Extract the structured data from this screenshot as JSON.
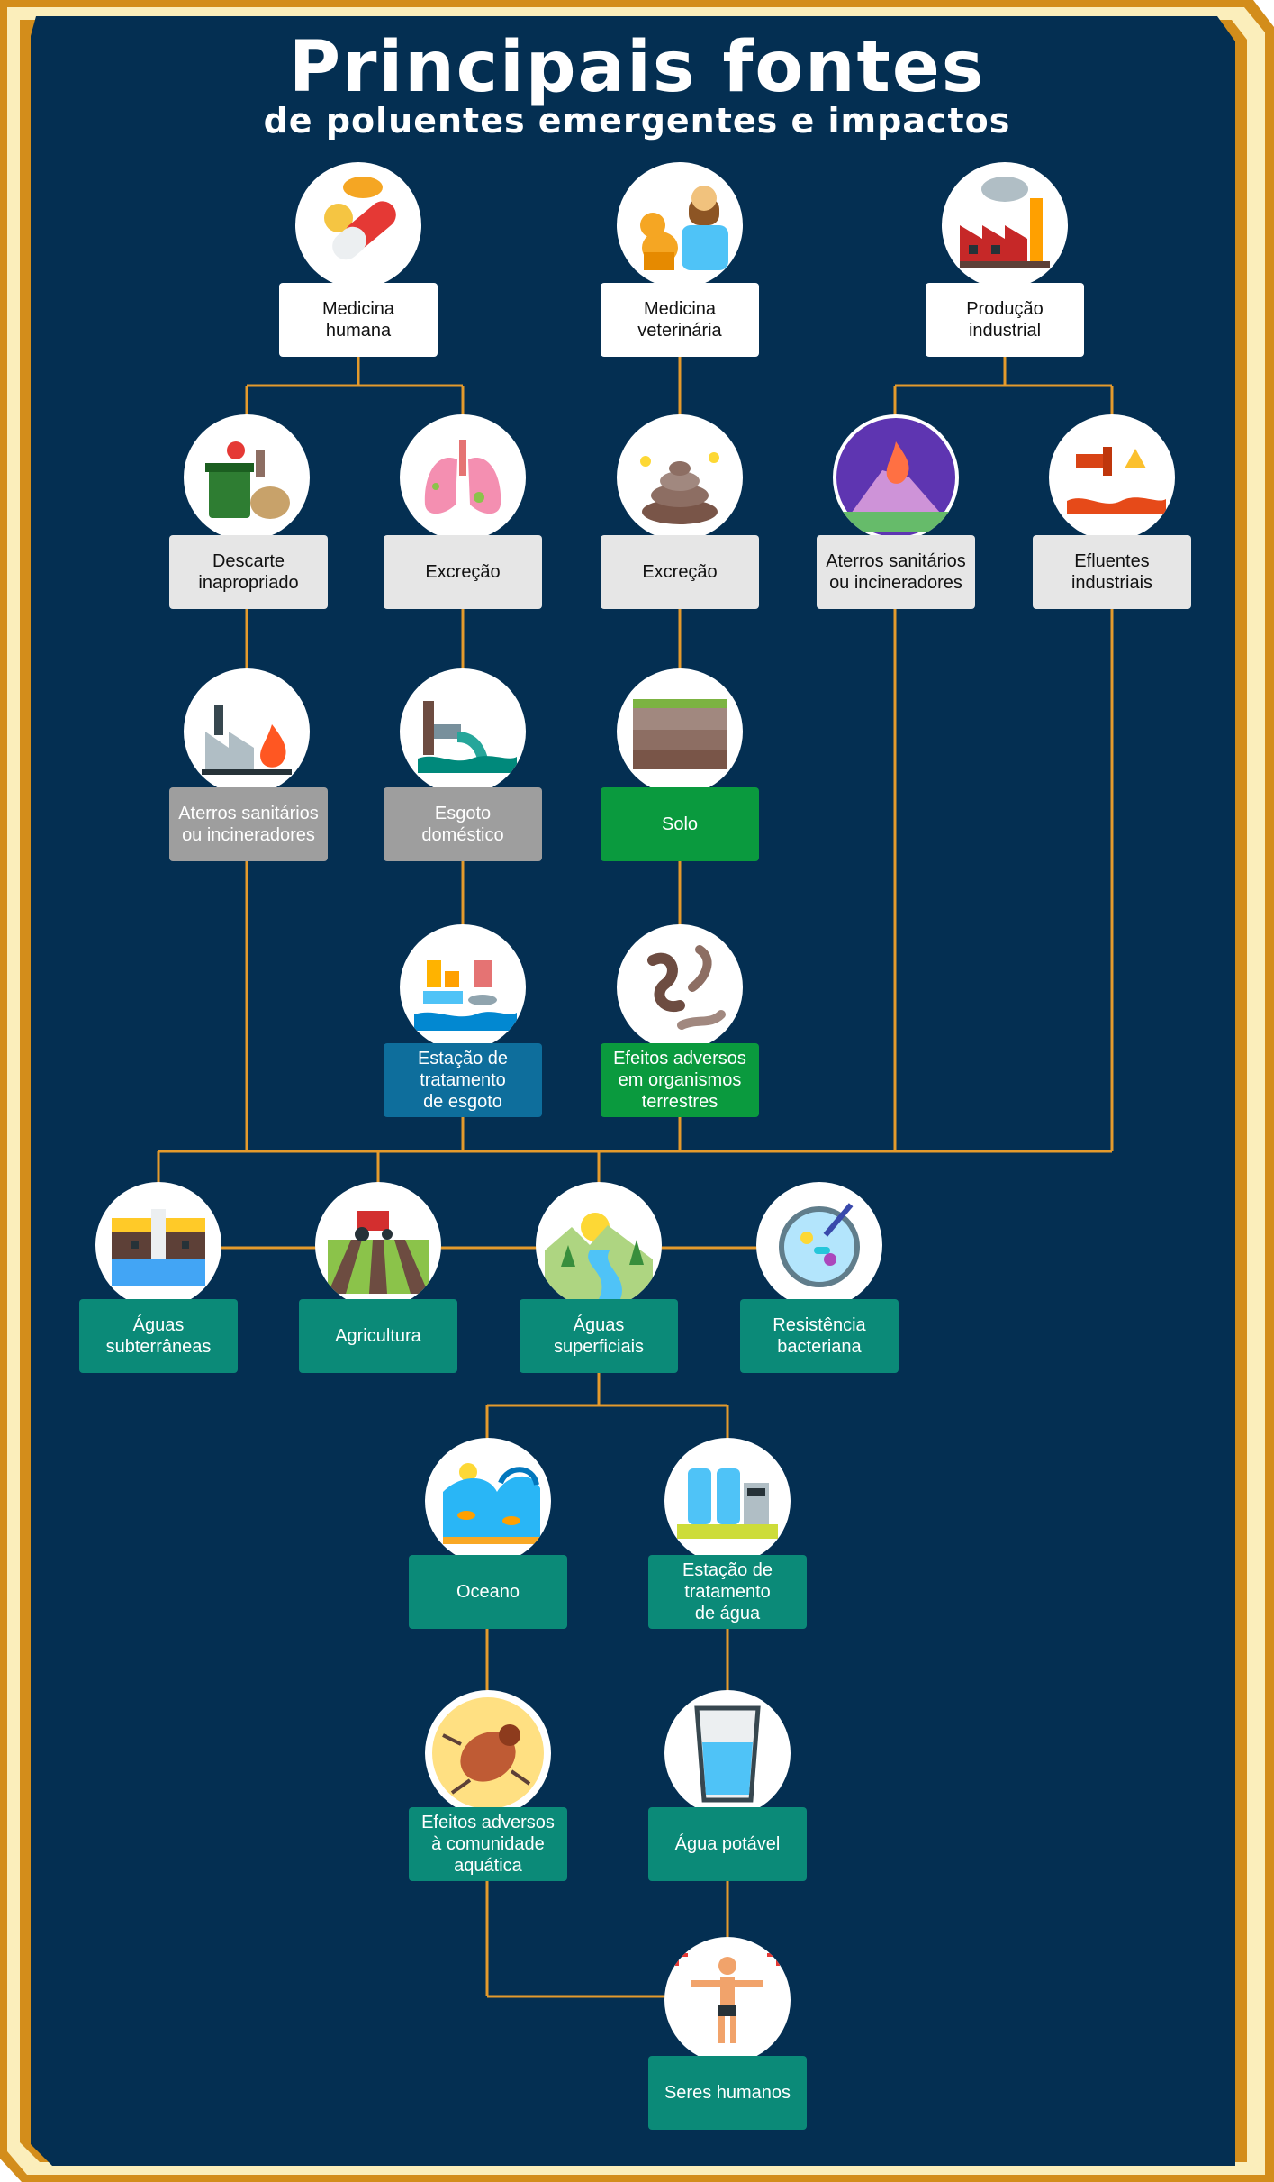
{
  "title": "Principais fontes",
  "subtitle": "de poluentes emergentes e impactos",
  "colors": {
    "background": "#042f52",
    "frame_outer": "#d38d1b",
    "frame_inner": "#fbeebb",
    "connector": "#e49a2c",
    "white_box": "#ffffff",
    "light_gray_box": "#e6e6e6",
    "dark_gray_box": "#9e9e9e",
    "green_box": "#0a9a3e",
    "blue_box": "#0e6e9c",
    "teal_box": "#0b8a78"
  },
  "nodes": {
    "medicina_humana": {
      "label": "Medicina\nhumana",
      "icon": "pill-capsule-icon"
    },
    "medicina_veterinaria": {
      "label": "Medicina\nveterinária",
      "icon": "veterinarian-dog-icon"
    },
    "producao_industrial": {
      "label": "Produção\nindustrial",
      "icon": "factory-icon"
    },
    "descarte": {
      "label": "Descarte\ninapropriado",
      "icon": "trash-bin-icon"
    },
    "excrecao_humana": {
      "label": "Excreção",
      "icon": "lungs-icon"
    },
    "excrecao_animal": {
      "label": "Excreção",
      "icon": "manure-icon"
    },
    "aterros_industriais": {
      "label": "Aterros sanitários\nou incineradores",
      "icon": "landfill-fire-icon"
    },
    "efluentes": {
      "label": "Efluentes\nindustriais",
      "icon": "effluent-pipe-icon"
    },
    "aterros_descarte": {
      "label": "Aterros sanitários\nou incineradores",
      "icon": "incinerator-factory-icon"
    },
    "esgoto": {
      "label": "Esgoto\ndoméstico",
      "icon": "sewage-pipe-icon"
    },
    "solo": {
      "label": "Solo",
      "icon": "soil-layers-icon"
    },
    "ete_esgoto": {
      "label": "Estação de\ntratamento\nde esgoto",
      "icon": "treatment-plant-icon"
    },
    "efeitos_terrestres": {
      "label": "Efeitos adversos\nem organismos\nterrestres",
      "icon": "worms-icon"
    },
    "aguas_subterraneas": {
      "label": "Águas\nsubterrâneas",
      "icon": "groundwater-icon"
    },
    "agricultura": {
      "label": "Agricultura",
      "icon": "tractor-field-icon"
    },
    "aguas_superficiais": {
      "label": "Águas\nsuperficiais",
      "icon": "river-landscape-icon"
    },
    "resistencia": {
      "label": "Resistência\nbacteriana",
      "icon": "petri-dish-icon"
    },
    "oceano": {
      "label": "Oceano",
      "icon": "ocean-wave-icon"
    },
    "eta": {
      "label": "Estação de\ntratamento\nde água",
      "icon": "water-tanks-icon"
    },
    "efeitos_aquatica": {
      "label": "Efeitos adversos\nà comunidade\naquática",
      "icon": "beetle-icon"
    },
    "agua_potavel": {
      "label": "Água potável",
      "icon": "water-glass-icon"
    },
    "seres_humanos": {
      "label": "Seres humanos",
      "icon": "human-body-icon"
    }
  }
}
